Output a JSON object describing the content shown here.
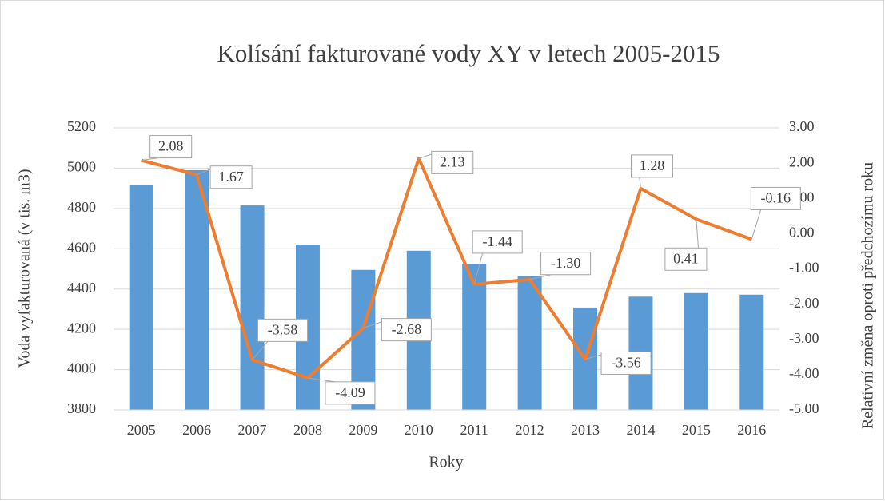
{
  "chart_data": {
    "type": "bar_line",
    "title": "Kolísání fakturované vody XY v letech 2005-2015",
    "xlabel": "Roky",
    "ylabel": "Voda vyfakturovaná (v tis. m3)",
    "y2label": "Relativní změna oproti předchozímu roku",
    "categories": [
      "2005",
      "2006",
      "2007",
      "2008",
      "2009",
      "2010",
      "2011",
      "2012",
      "2013",
      "2014",
      "2015",
      "2016"
    ],
    "series": [
      {
        "type": "bar",
        "color": "#5b9bd5",
        "values": [
          4915,
          4990,
          4815,
          4620,
          4495,
          4590,
          4525,
          4465,
          4308,
          4362,
          4380,
          4372
        ]
      },
      {
        "type": "line",
        "axis": "y2",
        "color": "#ed7d31",
        "values": [
          2.08,
          1.67,
          -3.58,
          -4.09,
          -2.68,
          2.13,
          -1.44,
          -1.3,
          -3.56,
          1.28,
          0.41,
          -0.16
        ],
        "value_labels": [
          "2.08",
          "1.67",
          "-3.58",
          "-4.09",
          "-2.68",
          "2.13",
          "-1.44",
          "-1.30",
          "-3.56",
          "1.28",
          "0.41",
          "-0.16"
        ]
      }
    ],
    "ylim": [
      3800,
      5200
    ],
    "yticks": [
      3800,
      4000,
      4200,
      4400,
      4600,
      4800,
      5000,
      5200
    ],
    "y2lim": [
      -5,
      3
    ],
    "y2ticks": [
      {
        "value": -5,
        "label": "-5.00"
      },
      {
        "value": -4,
        "label": "-4.00"
      },
      {
        "value": -3,
        "label": "-3.00"
      },
      {
        "value": -2,
        "label": "-2.00"
      },
      {
        "value": -1,
        "label": "-1.00"
      },
      {
        "value": 0,
        "label": "0.00"
      },
      {
        "value": 1,
        "label": "1.00"
      },
      {
        "value": 2,
        "label": "2.00"
      },
      {
        "value": 3,
        "label": "3.00"
      }
    ],
    "grid": true
  }
}
